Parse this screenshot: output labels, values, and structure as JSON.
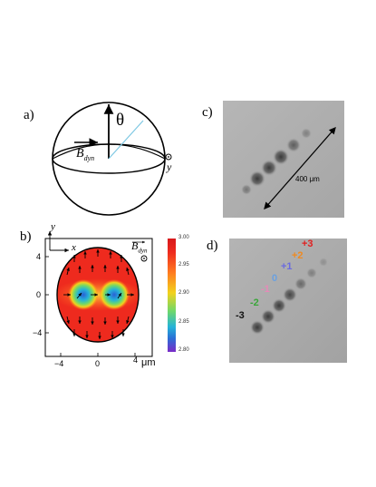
{
  "panels": {
    "a": {
      "label": "a)",
      "theta": "θ",
      "b_dyn": "B",
      "b_dyn_sub": "dyn",
      "y": "y"
    },
    "b": {
      "label": "b)",
      "axis_y": "y",
      "axis_x": "x",
      "b_dyn": "B",
      "b_dyn_sub": "dyn",
      "x_ticks": [
        "−4",
        "0",
        "4"
      ],
      "y_ticks": [
        "4",
        "0",
        "−4"
      ],
      "unit": "μm",
      "colorbar_ticks": [
        "3.00",
        "2.95",
        "2.90",
        "2.85",
        "2.80"
      ],
      "colors": [
        "#ee2a1e",
        "#ff7a20",
        "#f2d21c",
        "#6fd86a",
        "#25b3d8",
        "#2a6fd6",
        "#7a2bc8"
      ]
    },
    "c": {
      "label": "c)",
      "scale_label": "400 μm"
    },
    "d": {
      "label": "d)",
      "orders": [
        {
          "text": "-3",
          "color": "#111111"
        },
        {
          "text": "-2",
          "color": "#3aa63a"
        },
        {
          "text": "-1",
          "color": "#e58ab8"
        },
        {
          "text": "0",
          "color": "#6aa0e0"
        },
        {
          "text": "+1",
          "color": "#6a6ae0"
        },
        {
          "text": "+2",
          "color": "#f08a20"
        },
        {
          "text": "+3",
          "color": "#e02020"
        }
      ]
    }
  }
}
